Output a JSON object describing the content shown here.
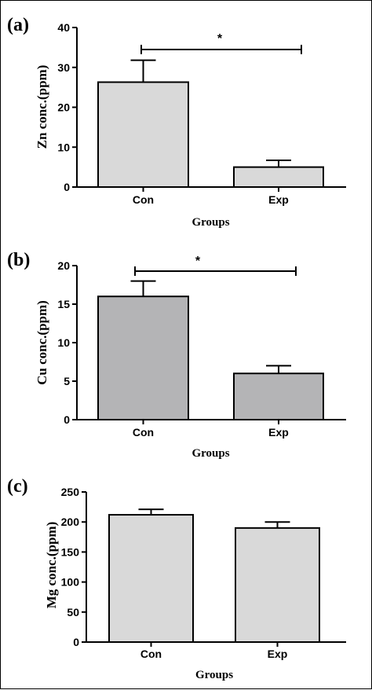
{
  "chart_data": [
    {
      "type": "bar",
      "panel_label": "(a)",
      "categories": [
        "Con",
        "Exp"
      ],
      "values": [
        26.3,
        5.0
      ],
      "errors": [
        5.5,
        1.7
      ],
      "xlabel": "Groups",
      "ylabel": "Zn conc.(ppm)",
      "ylim": [
        0,
        40
      ],
      "yticks": [
        0,
        10,
        20,
        30,
        40
      ],
      "bar_color": "#d9d9d9",
      "significance": "*",
      "grid": false
    },
    {
      "type": "bar",
      "panel_label": "(b)",
      "categories": [
        "Con",
        "Exp"
      ],
      "values": [
        16.0,
        6.0
      ],
      "errors": [
        2.0,
        1.0
      ],
      "xlabel": "Groups",
      "ylabel": "Cu conc.(ppm)",
      "ylim": [
        0,
        20
      ],
      "yticks": [
        0,
        5,
        10,
        15,
        20
      ],
      "bar_color": "#b4b4b6",
      "significance": "*",
      "grid": false
    },
    {
      "type": "bar",
      "panel_label": "(c)",
      "categories": [
        "Con",
        "Exp"
      ],
      "values": [
        212,
        190
      ],
      "errors": [
        9,
        10
      ],
      "xlabel": "Groups",
      "ylabel": "Mg conc.(ppm)",
      "ylim": [
        0,
        250
      ],
      "yticks": [
        0,
        50,
        100,
        150,
        200,
        250
      ],
      "bar_color": "#d9d9d9",
      "significance": "",
      "grid": false
    }
  ]
}
